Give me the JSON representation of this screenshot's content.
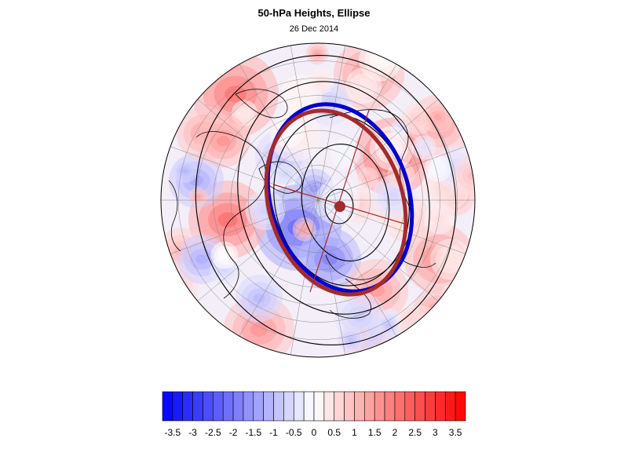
{
  "title": "50-hPa Heights, Ellipse",
  "subtitle": "26 Dec 2014",
  "colorbar": {
    "min": -3.75,
    "max": 3.75,
    "step": 0.25,
    "tick_labels": [
      "-3.5",
      "-3",
      "-2.5",
      "-2",
      "-1.5",
      "-1",
      "-0.5",
      "0",
      "0.5",
      "1",
      "1.5",
      "2",
      "2.5",
      "3",
      "3.5"
    ],
    "tick_values": [
      -3.5,
      -3,
      -2.5,
      -2,
      -1.5,
      -1,
      -0.5,
      0,
      0.5,
      1,
      1.5,
      2,
      2.5,
      3,
      3.5
    ],
    "color_negative": "#0000ff",
    "color_positive": "#ff0000",
    "color_zero": "#ffffff"
  },
  "map": {
    "projection": "polar-orthographic",
    "hemisphere": "north",
    "ellipse_colors": {
      "observed": "#0000cc",
      "climatology": "#a52a2a"
    },
    "contour_color": "#000000"
  }
}
